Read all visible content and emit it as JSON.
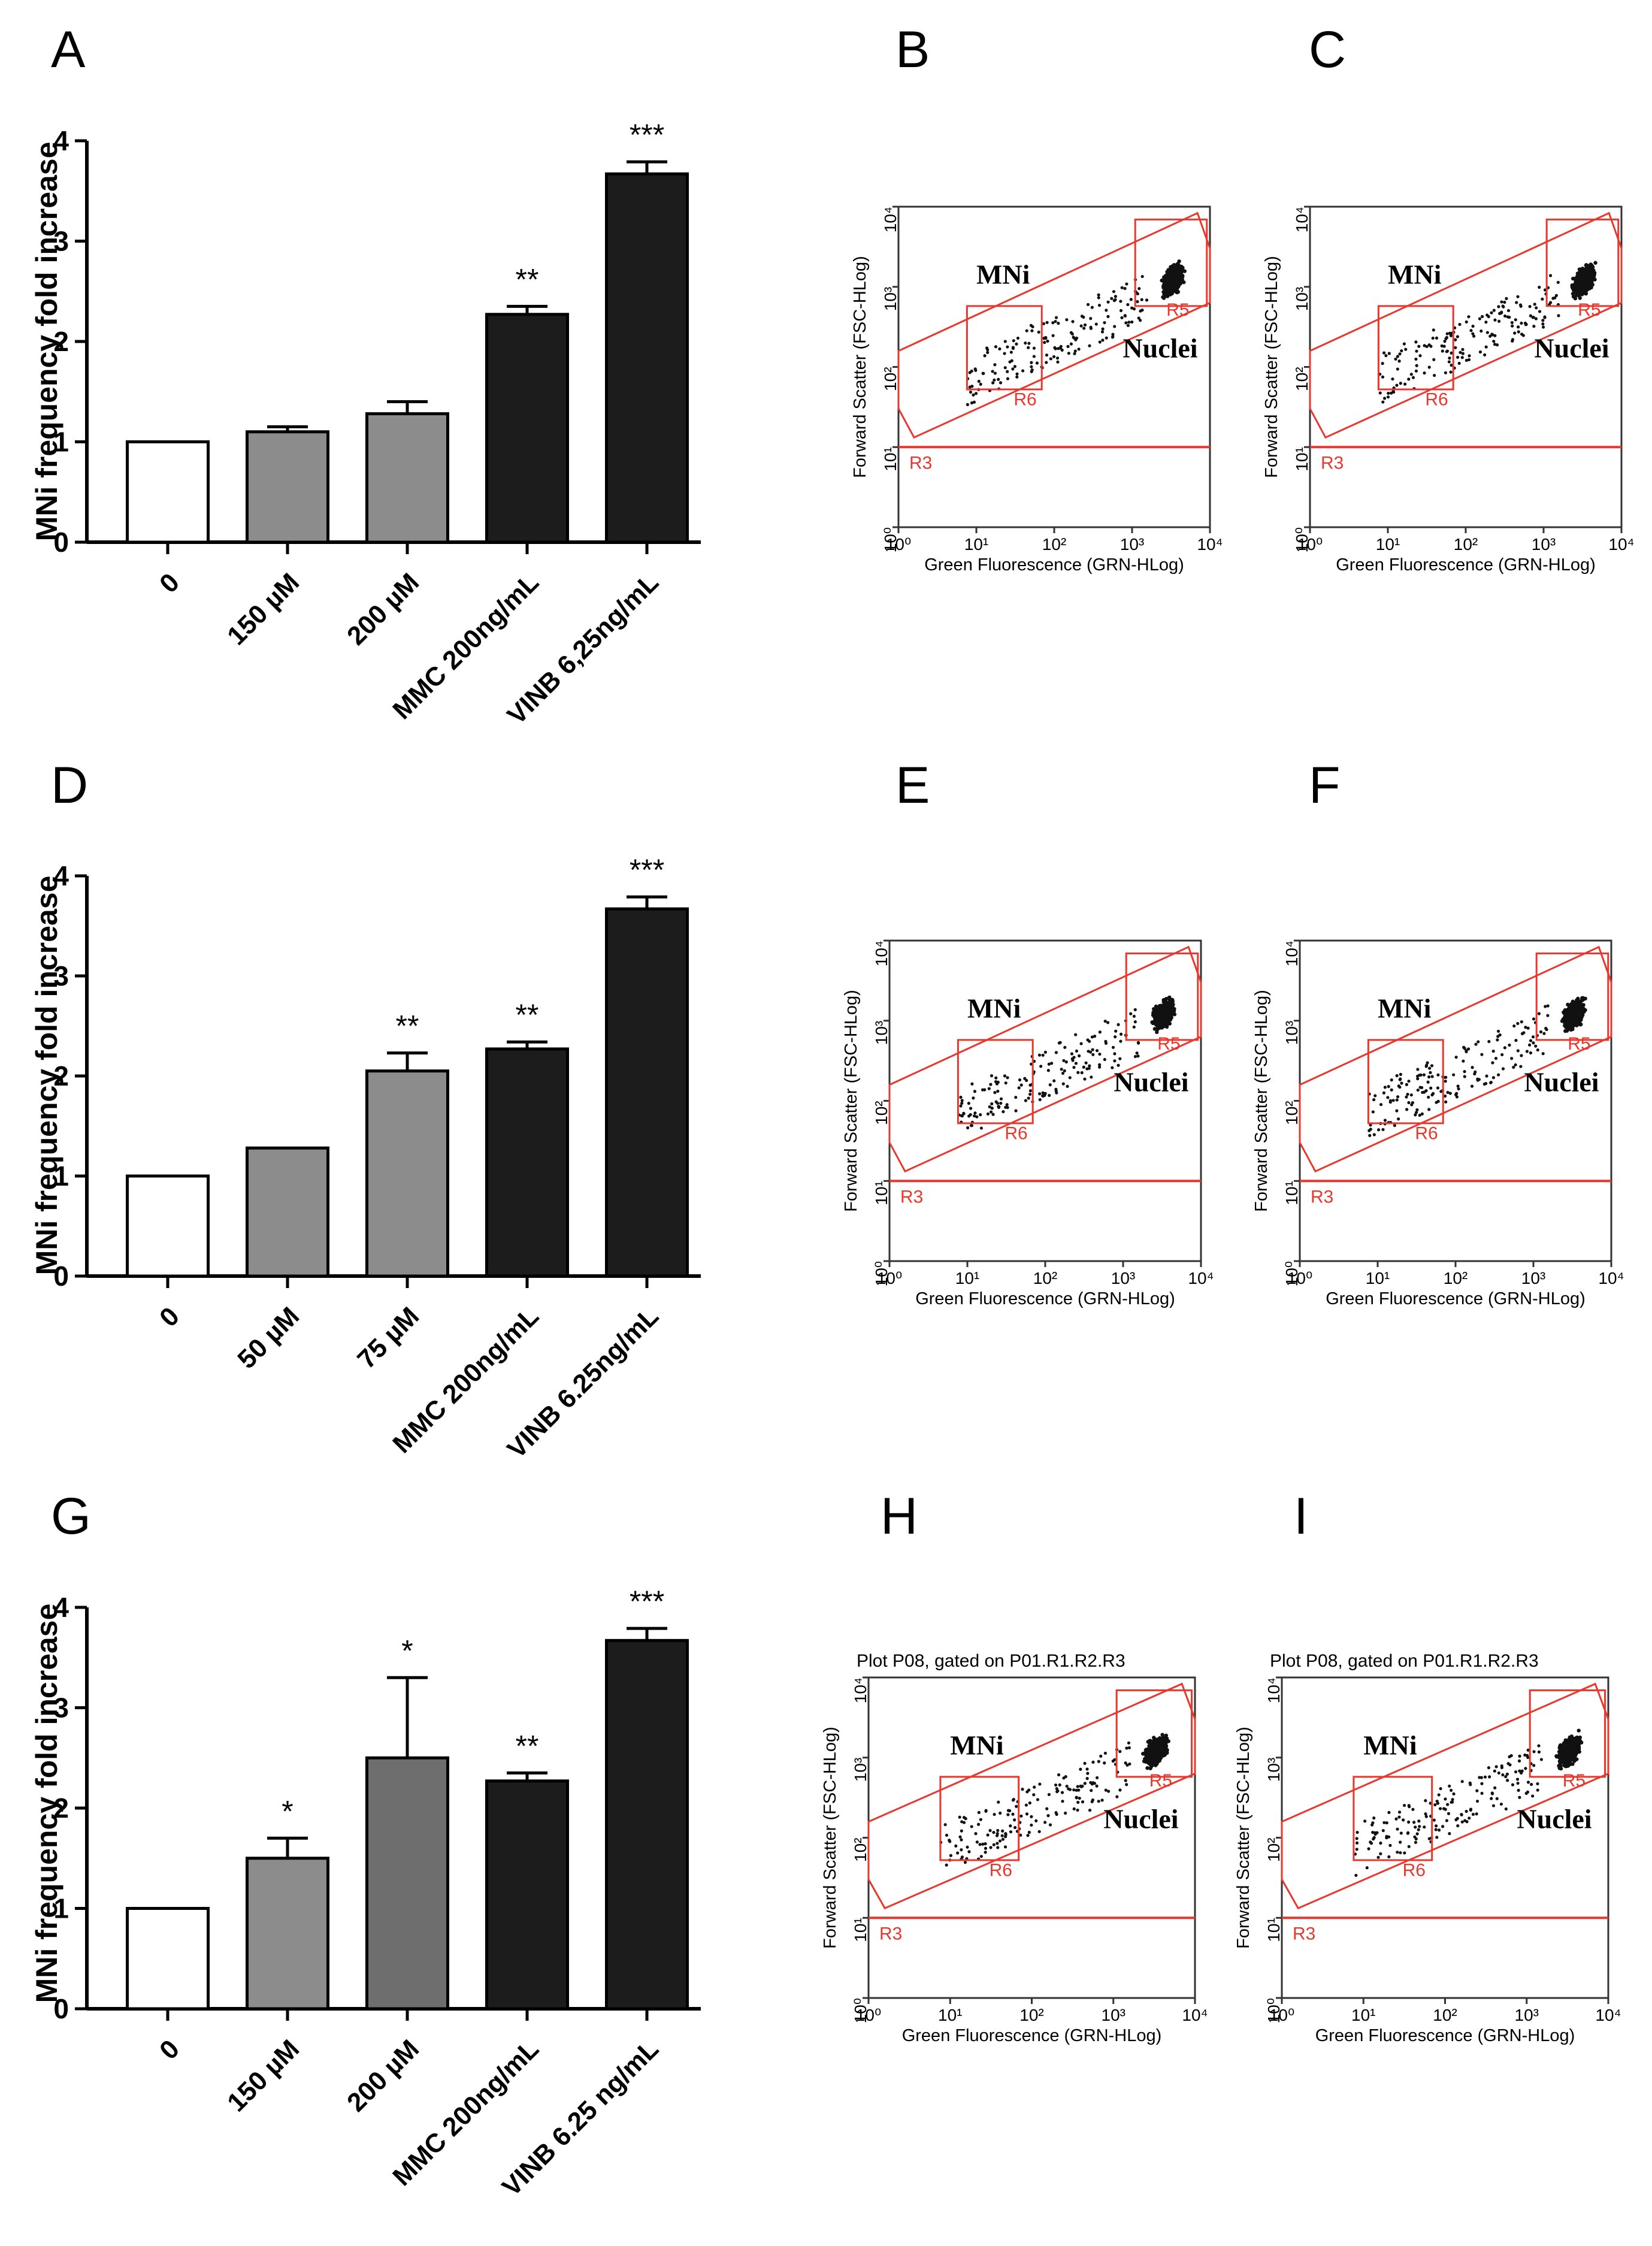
{
  "colors": {
    "white_bar": "#ffffff",
    "light_grey": "#8c8c8c",
    "dark_grey": "#6e6e6e",
    "black_bar": "#1c1c1c",
    "gate_red": "#e8372c",
    "event_black": "#111111"
  },
  "chart_data": [
    {
      "panel": "A",
      "type": "bar",
      "ylabel": "MNi frequency fold increase",
      "ylim": [
        0,
        4
      ],
      "yticks": [
        "0",
        "1",
        "2",
        "3",
        "4"
      ],
      "categories": [
        "0",
        "150  µM",
        "200  µM",
        "MMC 200ng/mL",
        "VINB 6,25ng/mL"
      ],
      "values": [
        1.0,
        1.1,
        1.28,
        2.27,
        3.67
      ],
      "errors": [
        0,
        0.05,
        0.12,
        0.08,
        0.12
      ],
      "significance": [
        "",
        "",
        "",
        "**",
        "***"
      ],
      "bar_colors": [
        "#ffffff",
        "#8c8c8c",
        "#8c8c8c",
        "#1c1c1c",
        "#1c1c1c"
      ]
    },
    {
      "panel": "D",
      "type": "bar",
      "ylabel": "MNi frequency fold increase",
      "ylim": [
        0,
        4
      ],
      "yticks": [
        "0",
        "1",
        "2",
        "3",
        "4"
      ],
      "categories": [
        "0",
        "50 µM",
        "75 µM",
        "MMC 200ng/mL",
        "VINB 6.25ng/mL"
      ],
      "values": [
        1.0,
        1.28,
        2.05,
        2.27,
        3.67
      ],
      "errors": [
        0,
        0,
        0.18,
        0.07,
        0.12
      ],
      "significance": [
        "",
        "",
        "**",
        "**",
        "***"
      ],
      "bar_colors": [
        "#ffffff",
        "#8c8c8c",
        "#8c8c8c",
        "#1c1c1c",
        "#1c1c1c"
      ]
    },
    {
      "panel": "G",
      "type": "bar",
      "ylabel": "MNi frequency fold increase",
      "ylim": [
        0,
        4
      ],
      "yticks": [
        "0",
        "1",
        "2",
        "3",
        "4"
      ],
      "categories": [
        "0",
        "150 µM",
        "200 µM",
        "MMC 200ng/mL",
        "VINB 6.25 ng/mL"
      ],
      "values": [
        1.0,
        1.5,
        2.5,
        2.27,
        3.67
      ],
      "errors": [
        0,
        0.2,
        0.8,
        0.08,
        0.12
      ],
      "significance": [
        "",
        "*",
        "*",
        "**",
        "***"
      ],
      "bar_colors": [
        "#ffffff",
        "#8c8c8c",
        "#6e6e6e",
        "#1c1c1c",
        "#1c1c1c"
      ]
    }
  ],
  "flow_plots": {
    "xlabel": "Green Fluorescence (GRN-HLog)",
    "ylabel": "Forward Scatter (FSC-HLog)",
    "ticks": [
      "10⁰",
      "10¹",
      "10²",
      "10³",
      "10⁴"
    ],
    "gate_labels": {
      "r3": "R3",
      "r5": "R5",
      "r6": "R6"
    },
    "region_labels": {
      "mni": "MNi",
      "nuclei": "Nuclei"
    },
    "plot_title": "Plot P08, gated on P01.R1.R2.R3",
    "panels": [
      {
        "letter": "B",
        "title": ""
      },
      {
        "letter": "C",
        "title": ""
      },
      {
        "letter": "E",
        "title": ""
      },
      {
        "letter": "F",
        "title": ""
      },
      {
        "letter": "H",
        "title": "Plot P08, gated on P01.R1.R2.R3"
      },
      {
        "letter": "I",
        "title": "Plot P08, gated on P01.R1.R2.R3"
      }
    ]
  },
  "panel_letters": [
    "A",
    "B",
    "C",
    "D",
    "E",
    "F",
    "G",
    "H",
    "I"
  ]
}
